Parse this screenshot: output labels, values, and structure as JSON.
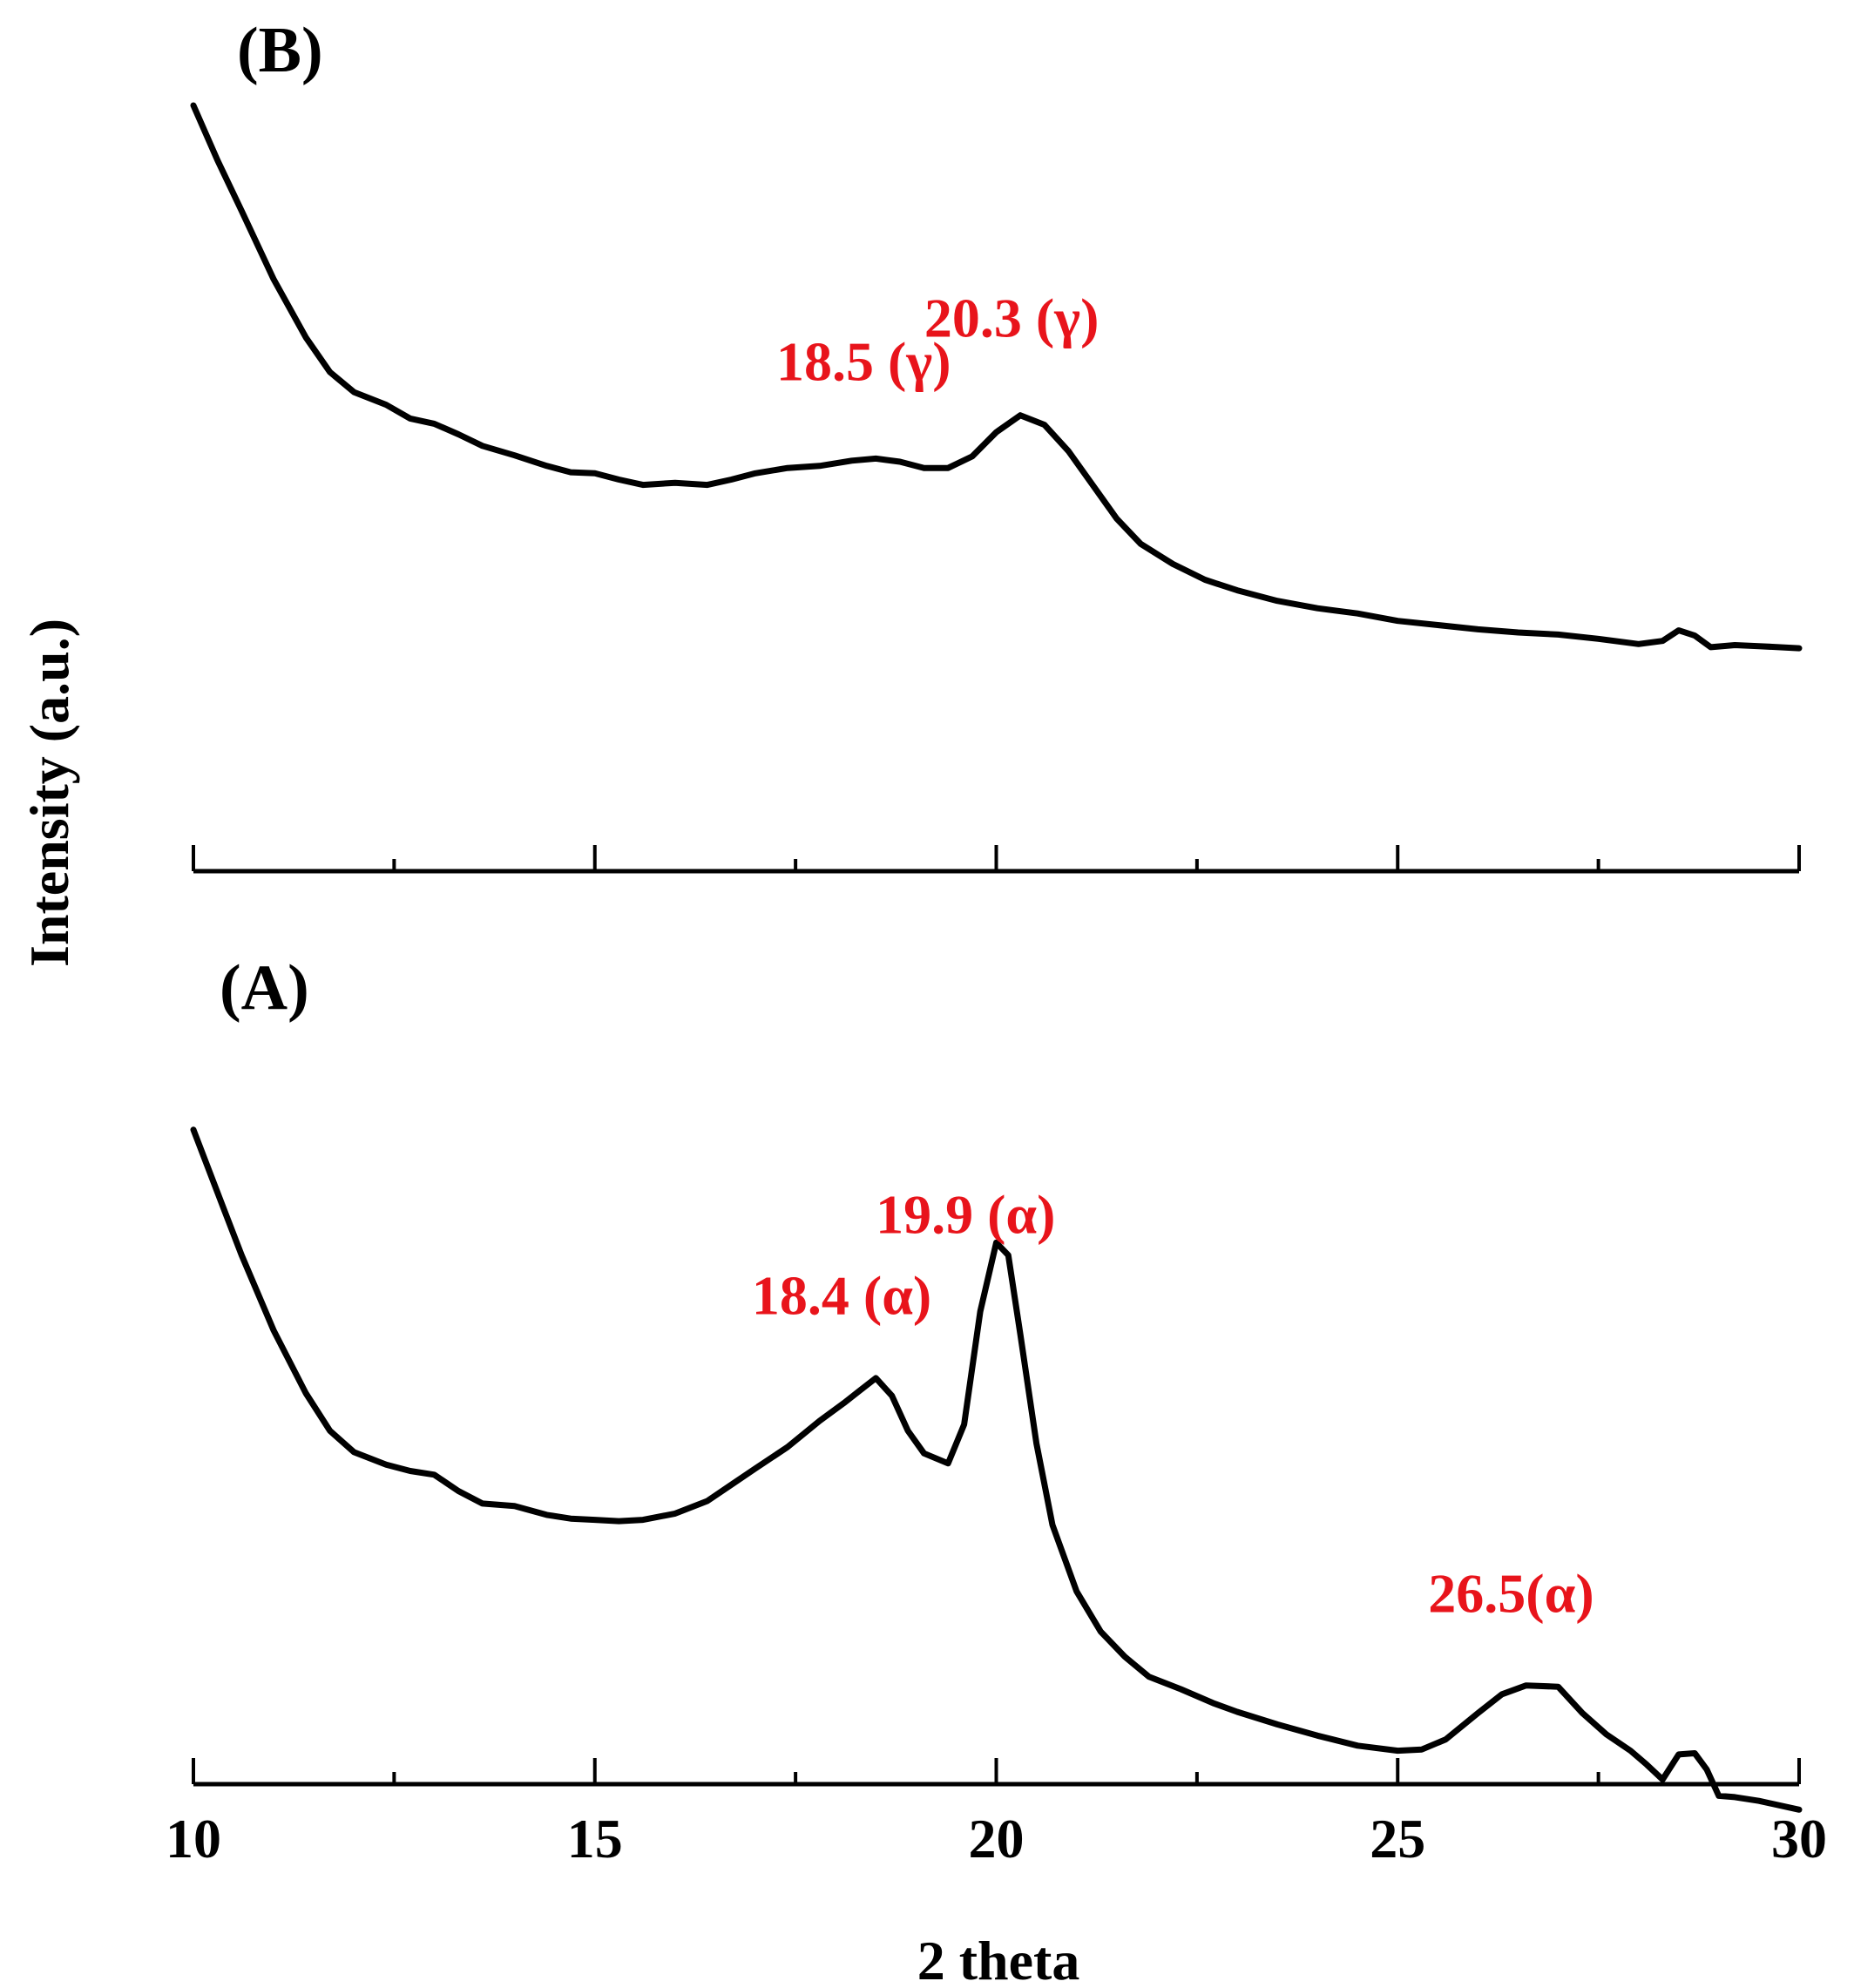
{
  "chart_data": {
    "type": "line",
    "xlabel": "2 theta",
    "ylabel": "Intensity (a.u.)",
    "xlim": [
      10,
      30
    ],
    "x_major_ticks": [
      10,
      15,
      20,
      25,
      30
    ],
    "x_minor_ticks": [
      12.5,
      17.5,
      22.5,
      27.5
    ],
    "y_ticks_shown": false,
    "grid": false,
    "annotation_color": "#e8141b",
    "line_color": "#000000",
    "panels": [
      {
        "label": "(B)",
        "annotations": [
          {
            "text": "18.5 (γ)",
            "x": 18.5
          },
          {
            "text": "20.3 (γ)",
            "x": 20.3
          }
        ],
        "series": {
          "x": [
            10.0,
            10.3,
            10.6,
            11.0,
            11.4,
            11.7,
            12.0,
            12.4,
            12.7,
            13.0,
            13.3,
            13.6,
            14.0,
            14.4,
            14.7,
            15.0,
            15.3,
            15.6,
            16.0,
            16.4,
            16.7,
            17.0,
            17.4,
            17.8,
            18.2,
            18.5,
            18.8,
            19.1,
            19.4,
            19.7,
            20.0,
            20.3,
            20.6,
            20.9,
            21.2,
            21.5,
            21.8,
            22.2,
            22.6,
            23.0,
            23.5,
            24.0,
            24.5,
            25.0,
            25.5,
            26.0,
            26.5,
            27.0,
            27.5,
            28.0,
            28.3,
            28.5,
            28.7,
            28.9,
            29.2,
            29.5,
            30.0
          ],
          "y": [
            0.9,
            0.848,
            0.8,
            0.735,
            0.68,
            0.647,
            0.628,
            0.616,
            0.603,
            0.598,
            0.588,
            0.577,
            0.568,
            0.558,
            0.552,
            0.551,
            0.545,
            0.54,
            0.542,
            0.54,
            0.545,
            0.551,
            0.556,
            0.558,
            0.563,
            0.565,
            0.562,
            0.556,
            0.556,
            0.567,
            0.59,
            0.606,
            0.597,
            0.572,
            0.54,
            0.508,
            0.484,
            0.465,
            0.45,
            0.44,
            0.43,
            0.423,
            0.418,
            0.411,
            0.407,
            0.403,
            0.4,
            0.398,
            0.394,
            0.389,
            0.392,
            0.402,
            0.397,
            0.386,
            0.388,
            0.387,
            0.385
          ]
        }
      },
      {
        "label": "(A)",
        "annotations": [
          {
            "text": "18.4 (α)",
            "x": 18.4
          },
          {
            "text": "19.9 (α)",
            "x": 19.9
          },
          {
            "text": "26.5(α)",
            "x": 26.5
          }
        ],
        "series": {
          "x": [
            10.0,
            10.3,
            10.6,
            11.0,
            11.4,
            11.7,
            12.0,
            12.4,
            12.7,
            13.0,
            13.3,
            13.6,
            14.0,
            14.4,
            14.7,
            15.0,
            15.3,
            15.6,
            16.0,
            16.4,
            16.7,
            17.0,
            17.4,
            17.8,
            18.1,
            18.3,
            18.5,
            18.7,
            18.9,
            19.1,
            19.4,
            19.6,
            19.8,
            20.0,
            20.15,
            20.3,
            20.5,
            20.7,
            21.0,
            21.3,
            21.6,
            21.9,
            22.3,
            22.7,
            23.0,
            23.5,
            24.0,
            24.5,
            25.0,
            25.3,
            25.6,
            26.0,
            26.3,
            26.6,
            27.0,
            27.3,
            27.6,
            27.9,
            28.1,
            28.3,
            28.5,
            28.7,
            28.85,
            29.0,
            29.2,
            29.5,
            30.0
          ],
          "y": [
            0.78,
            0.73,
            0.68,
            0.62,
            0.57,
            0.54,
            0.523,
            0.513,
            0.508,
            0.505,
            0.492,
            0.482,
            0.48,
            0.473,
            0.47,
            0.469,
            0.468,
            0.469,
            0.474,
            0.484,
            0.497,
            0.51,
            0.527,
            0.548,
            0.562,
            0.572,
            0.582,
            0.568,
            0.54,
            0.522,
            0.514,
            0.545,
            0.635,
            0.69,
            0.68,
            0.617,
            0.53,
            0.465,
            0.412,
            0.38,
            0.36,
            0.344,
            0.334,
            0.323,
            0.316,
            0.306,
            0.297,
            0.289,
            0.285,
            0.286,
            0.294,
            0.315,
            0.33,
            0.337,
            0.336,
            0.315,
            0.298,
            0.285,
            0.274,
            0.262,
            0.282,
            0.283,
            0.27,
            0.249,
            0.248,
            0.245,
            0.238
          ]
        }
      }
    ]
  }
}
